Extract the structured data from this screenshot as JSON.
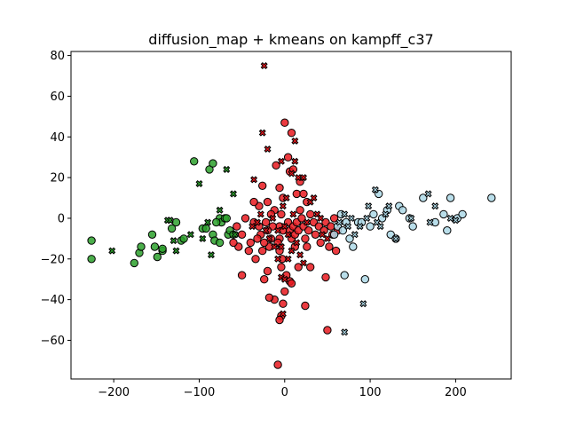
{
  "chart_data": {
    "type": "scatter",
    "title": "diffusion_map + kmeans on kampff_c37",
    "xlabel": "",
    "ylabel": "",
    "xlim": [
      -250,
      265
    ],
    "ylim": [
      -79,
      82
    ],
    "x_ticks": [
      -200,
      -100,
      0,
      100,
      200
    ],
    "x_tick_labels": [
      "−200",
      "−100",
      "0",
      "100",
      "200"
    ],
    "y_ticks": [
      -60,
      -40,
      -20,
      0,
      20,
      40,
      60,
      80
    ],
    "y_tick_labels": [
      "−60",
      "−40",
      "−20",
      "0",
      "20",
      "40",
      "60",
      "80"
    ],
    "grid": false,
    "legend": false,
    "series": [
      {
        "color": "#2ca02c",
        "circles": [
          [
            -226,
            -11
          ],
          [
            -226,
            -20
          ],
          [
            -176,
            -22
          ],
          [
            -170,
            -17
          ],
          [
            -168,
            -14
          ],
          [
            -155,
            -8
          ],
          [
            -152,
            -14
          ],
          [
            -149,
            -19
          ],
          [
            -143,
            -16
          ],
          [
            -143,
            -15
          ],
          [
            -132,
            -5
          ],
          [
            -127,
            -2
          ],
          [
            -121,
            -11
          ],
          [
            -118,
            -10
          ],
          [
            -106,
            28
          ],
          [
            -96,
            -5
          ],
          [
            -92,
            -5
          ],
          [
            -88,
            24
          ],
          [
            -84,
            27
          ],
          [
            -84,
            -8
          ],
          [
            -82,
            -11
          ],
          [
            -76,
            0
          ],
          [
            -74,
            -2
          ],
          [
            -70,
            0
          ],
          [
            -68,
            0
          ],
          [
            -66,
            -8
          ],
          [
            -64,
            -6
          ],
          [
            -60,
            -8
          ],
          [
            -76,
            -12
          ],
          [
            -80,
            -2
          ]
        ],
        "crosses": [
          [
            -202,
            -16
          ],
          [
            -137,
            -1
          ],
          [
            -134,
            -1
          ],
          [
            -130,
            -11
          ],
          [
            -127,
            -16
          ],
          [
            -110,
            -8
          ],
          [
            -100,
            17
          ],
          [
            -96,
            -10
          ],
          [
            -90,
            -2
          ],
          [
            -86,
            -18
          ],
          [
            -76,
            4
          ],
          [
            -68,
            24
          ],
          [
            -60,
            12
          ],
          [
            -58,
            -8
          ]
        ]
      },
      {
        "color": "#e8191e",
        "circles": [
          [
            -26,
            16
          ],
          [
            -10,
            26
          ],
          [
            -6,
            15
          ],
          [
            -2,
            10
          ],
          [
            0,
            47
          ],
          [
            4,
            30
          ],
          [
            6,
            23
          ],
          [
            8,
            42
          ],
          [
            10,
            24
          ],
          [
            -4,
            2
          ],
          [
            -6,
            -4
          ],
          [
            -2,
            -6
          ],
          [
            -6,
            -10
          ],
          [
            -8,
            -12
          ],
          [
            -6,
            -16
          ],
          [
            -3,
            -20
          ],
          [
            -4,
            -24
          ],
          [
            4,
            -2
          ],
          [
            6,
            -6
          ],
          [
            8,
            -10
          ],
          [
            10,
            -4
          ],
          [
            12,
            -8
          ],
          [
            14,
            -2
          ],
          [
            16,
            -6
          ],
          [
            18,
            4
          ],
          [
            20,
            0
          ],
          [
            22,
            -4
          ],
          [
            24,
            -10
          ],
          [
            26,
            -14
          ],
          [
            28,
            -6
          ],
          [
            30,
            2
          ],
          [
            34,
            -2
          ],
          [
            36,
            -8
          ],
          [
            40,
            -4
          ],
          [
            42,
            -12
          ],
          [
            46,
            -6
          ],
          [
            48,
            -2
          ],
          [
            52,
            -14
          ],
          [
            54,
            -4
          ],
          [
            56,
            -8
          ],
          [
            58,
            0
          ],
          [
            60,
            -16
          ],
          [
            62,
            -6
          ],
          [
            -14,
            -4
          ],
          [
            -16,
            -10
          ],
          [
            -18,
            -14
          ],
          [
            -20,
            -6
          ],
          [
            -22,
            -2
          ],
          [
            -24,
            -12
          ],
          [
            -26,
            -16
          ],
          [
            -28,
            -8
          ],
          [
            -30,
            -4
          ],
          [
            -32,
            -10
          ],
          [
            -34,
            -20
          ],
          [
            -36,
            -2
          ],
          [
            -40,
            -12
          ],
          [
            -42,
            -16
          ],
          [
            -46,
            0
          ],
          [
            -50,
            -8
          ],
          [
            -54,
            -14
          ],
          [
            -56,
            -4
          ],
          [
            -60,
            -12
          ],
          [
            -2,
            -42
          ],
          [
            -4,
            -48
          ],
          [
            -6,
            -50
          ],
          [
            -8,
            -72
          ],
          [
            0,
            -36
          ],
          [
            6,
            -31
          ],
          [
            8,
            -32
          ],
          [
            2,
            -28
          ],
          [
            -12,
            -40
          ],
          [
            -18,
            -39
          ],
          [
            -20,
            -26
          ],
          [
            -24,
            -30
          ],
          [
            24,
            -43
          ],
          [
            30,
            -24
          ],
          [
            16,
            -24
          ],
          [
            50,
            -55
          ],
          [
            48,
            -29
          ],
          [
            -50,
            -28
          ],
          [
            12,
            -14
          ],
          [
            -12,
            4
          ],
          [
            -16,
            2
          ],
          [
            14,
            12
          ],
          [
            18,
            18
          ],
          [
            22,
            12
          ],
          [
            26,
            8
          ],
          [
            -20,
            8
          ],
          [
            -30,
            6
          ],
          [
            -36,
            8
          ]
        ],
        "crosses": [
          [
            -24,
            75
          ],
          [
            -26,
            42
          ],
          [
            -20,
            34
          ],
          [
            -4,
            28
          ],
          [
            12,
            38
          ],
          [
            12,
            28
          ],
          [
            8,
            22
          ],
          [
            16,
            20
          ],
          [
            22,
            20
          ],
          [
            -36,
            19
          ],
          [
            -38,
            -4
          ],
          [
            -32,
            -2
          ],
          [
            -28,
            2
          ],
          [
            -22,
            -6
          ],
          [
            -18,
            -10
          ],
          [
            -14,
            0
          ],
          [
            -8,
            -20
          ],
          [
            -4,
            -14
          ],
          [
            0,
            -4
          ],
          [
            4,
            -8
          ],
          [
            8,
            -16
          ],
          [
            10,
            2
          ],
          [
            14,
            -12
          ],
          [
            18,
            -18
          ],
          [
            22,
            -22
          ],
          [
            26,
            -2
          ],
          [
            30,
            8
          ],
          [
            34,
            10
          ],
          [
            38,
            2
          ],
          [
            42,
            0
          ],
          [
            44,
            -8
          ],
          [
            50,
            -10
          ],
          [
            -2,
            -47
          ],
          [
            -4,
            -29
          ],
          [
            0,
            -30
          ],
          [
            4,
            -20
          ],
          [
            -8,
            -6
          ],
          [
            -12,
            -14
          ],
          [
            -2,
            6
          ],
          [
            2,
            10
          ]
        ]
      },
      {
        "color": "#add8e6",
        "circles": [
          [
            58,
            -8
          ],
          [
            62,
            -4
          ],
          [
            66,
            2
          ],
          [
            68,
            -6
          ],
          [
            70,
            -28
          ],
          [
            72,
            -2
          ],
          [
            76,
            -10
          ],
          [
            80,
            -14
          ],
          [
            86,
            -2
          ],
          [
            90,
            -2
          ],
          [
            94,
            -30
          ],
          [
            100,
            -4
          ],
          [
            104,
            2
          ],
          [
            110,
            12
          ],
          [
            114,
            0
          ],
          [
            120,
            4
          ],
          [
            124,
            -8
          ],
          [
            134,
            6
          ],
          [
            138,
            4
          ],
          [
            146,
            0
          ],
          [
            150,
            -4
          ],
          [
            162,
            10
          ],
          [
            176,
            -2
          ],
          [
            190,
            -6
          ],
          [
            194,
            10
          ],
          [
            202,
            0
          ],
          [
            208,
            2
          ],
          [
            242,
            10
          ],
          [
            186,
            2
          ],
          [
            130,
            -10
          ]
        ],
        "crosses": [
          [
            64,
            -2
          ],
          [
            70,
            2
          ],
          [
            74,
            -4
          ],
          [
            78,
            0
          ],
          [
            82,
            -8
          ],
          [
            88,
            -4
          ],
          [
            96,
            0
          ],
          [
            98,
            6
          ],
          [
            106,
            14
          ],
          [
            108,
            -2
          ],
          [
            112,
            -4
          ],
          [
            118,
            2
          ],
          [
            122,
            6
          ],
          [
            130,
            -10
          ],
          [
            148,
            0
          ],
          [
            168,
            12
          ],
          [
            170,
            -2
          ],
          [
            176,
            6
          ],
          [
            194,
            0
          ],
          [
            200,
            -1
          ],
          [
            92,
            -42
          ],
          [
            70,
            -56
          ]
        ]
      }
    ]
  }
}
